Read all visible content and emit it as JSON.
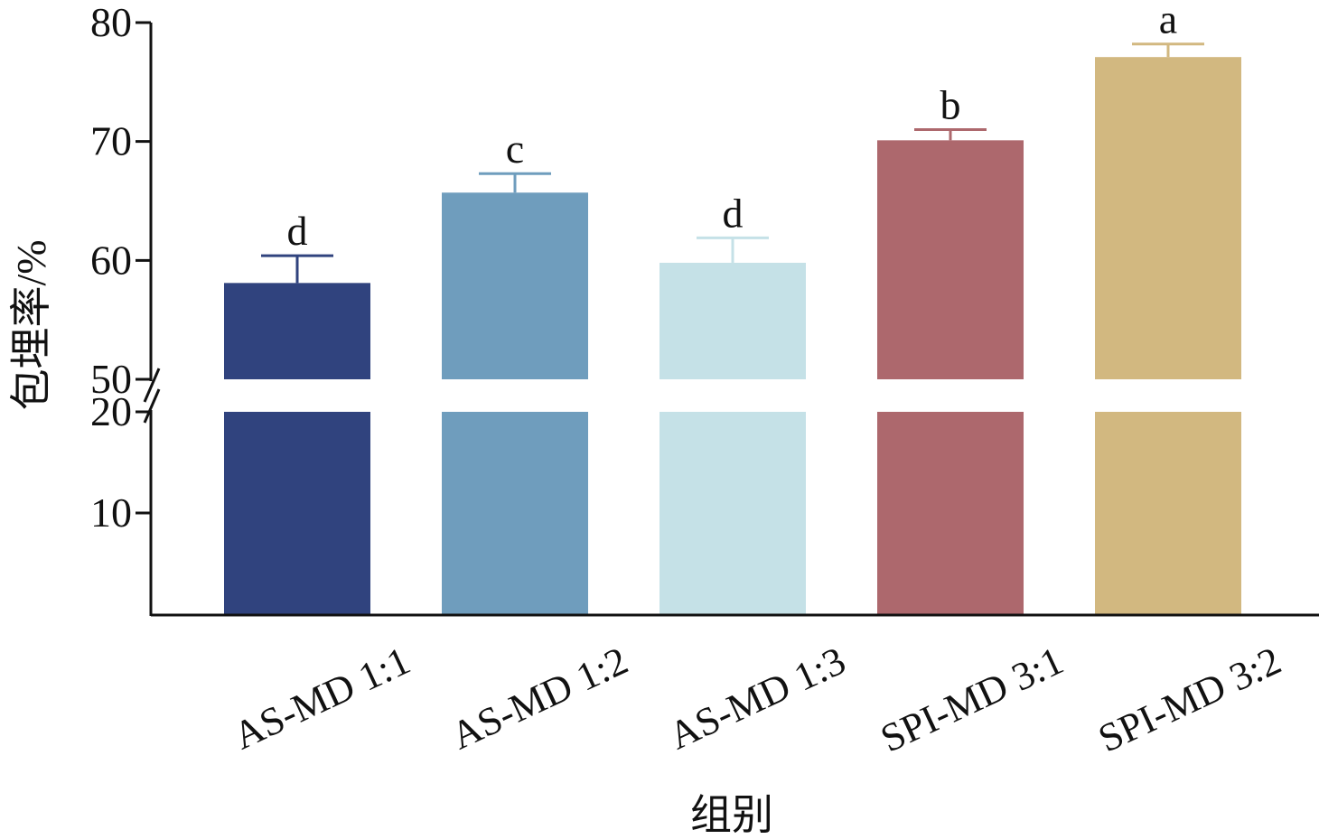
{
  "chart_data": {
    "type": "bar",
    "title": "",
    "xlabel": "组别",
    "ylabel": "包埋率/%",
    "categories": [
      "AS-MD 1:1",
      "AS-MD 1:2",
      "AS-MD 1:3",
      "SPI-MD 3:1",
      "SPI-MD 3:2"
    ],
    "values": [
      58.1,
      65.7,
      59.8,
      70.1,
      77.1
    ],
    "errors": [
      2.3,
      1.6,
      2.1,
      0.9,
      1.1
    ],
    "significance_letters": [
      "d",
      "c",
      "d",
      "b",
      "a"
    ],
    "colors": [
      "#30437e",
      "#6f9dbd",
      "#c5e1e7",
      "#ad686d",
      "#d2b880"
    ],
    "axis_break": {
      "lower_range": [
        0,
        20
      ],
      "upper_range": [
        50,
        80
      ]
    },
    "yticks_lower": [
      "10",
      "20"
    ],
    "yticks_upper": [
      "50",
      "60",
      "70",
      "80"
    ],
    "ylim": [
      0,
      80
    ],
    "grid": false,
    "legend": "none"
  }
}
